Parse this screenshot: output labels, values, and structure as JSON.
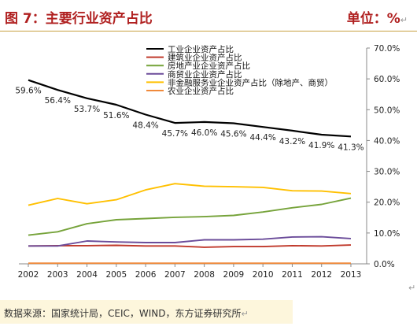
{
  "header": {
    "title": "图 7：主要行业资产占比",
    "unit": "单位：%"
  },
  "footer": {
    "source": "数据来源：国家统计局，CEIC，WIND，东方证券研究所"
  },
  "chart_data": {
    "type": "line",
    "x": [
      "2002",
      "2003",
      "2004",
      "2005",
      "2006",
      "2007",
      "2008",
      "2009",
      "2010",
      "2011",
      "2012",
      "2013"
    ],
    "ylim": [
      0,
      70
    ],
    "y_ticks": [
      0,
      10,
      20,
      30,
      40,
      50,
      60,
      70
    ],
    "y_tick_labels": [
      "0.0%",
      "10.0%",
      "20.0%",
      "30.0%",
      "40.0%",
      "50.0%",
      "60.0%",
      "70.0%"
    ],
    "y_axis_position": "right",
    "grid": false,
    "legend_position": "top-center",
    "series": [
      {
        "name": "工业企业资产占比",
        "color": "#000000",
        "values": [
          59.6,
          56.4,
          53.7,
          51.6,
          48.4,
          45.7,
          46.0,
          45.6,
          44.4,
          43.2,
          41.9,
          41.3
        ],
        "labels": [
          "59.6%",
          "56.4%",
          "53.7%",
          "51.6%",
          "48.4%",
          "45.7%",
          "46.0%",
          "45.6%",
          "44.4%",
          "43.2%",
          "41.9%",
          "41.3%"
        ]
      },
      {
        "name": "建筑业企业资产占比",
        "color": "#c0392b",
        "values": [
          5.8,
          5.9,
          5.9,
          6.0,
          5.8,
          5.8,
          5.4,
          5.6,
          5.6,
          5.9,
          5.8,
          6.1
        ]
      },
      {
        "name": "房地产业企业资产占比",
        "color": "#76a33a",
        "values": [
          9.3,
          10.4,
          13.0,
          14.3,
          14.7,
          15.1,
          15.3,
          15.7,
          16.8,
          18.2,
          19.3,
          21.3
        ]
      },
      {
        "name": "商贸业企业资产占比",
        "color": "#6b4c9a",
        "values": [
          5.8,
          5.8,
          7.4,
          7.1,
          6.9,
          6.9,
          7.8,
          7.8,
          8.0,
          8.7,
          8.8,
          8.2
        ]
      },
      {
        "name": "非金融服务业企业资产占比（除地产、商贸）",
        "color": "#ffc000",
        "values": [
          19.0,
          21.2,
          19.5,
          20.8,
          24.0,
          26.0,
          25.2,
          25.0,
          24.8,
          23.7,
          23.6,
          22.8
        ]
      },
      {
        "name": "农业企业资产占比",
        "color": "#f08a3c",
        "values": [
          0.2,
          0.2,
          0.2,
          0.2,
          0.2,
          0.2,
          0.2,
          0.2,
          0.2,
          0.2,
          0.2,
          0.2
        ]
      }
    ]
  }
}
